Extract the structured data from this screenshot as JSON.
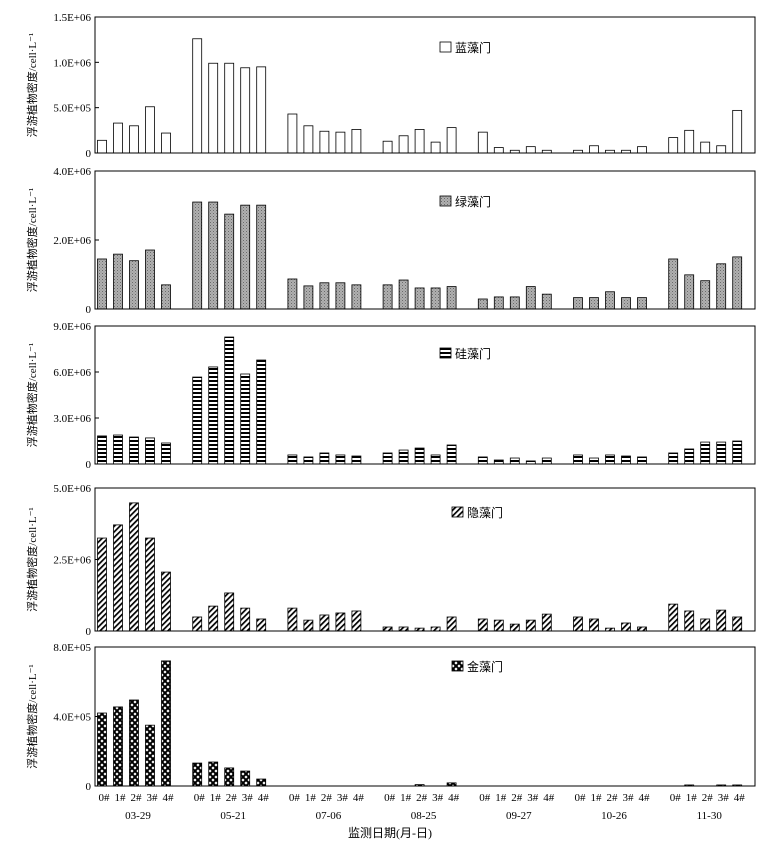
{
  "chart_data": {
    "type": "bar",
    "xlabel": "监测日期(月-日)",
    "categories": [
      "03-29",
      "05-21",
      "07-06",
      "08-25",
      "09-27",
      "10-26",
      "11-30"
    ],
    "stations": [
      "0#",
      "1#",
      "2#",
      "3#",
      "4#"
    ],
    "panels": [
      {
        "name": "蓝藻门",
        "ylabel": "浮游植物密度/cell·L⁻¹",
        "ylim": [
          0,
          1500000
        ],
        "yticks": [
          0,
          500000,
          1000000,
          1500000
        ],
        "ytick_labels": [
          "0",
          "5.0E+05",
          "1.0E+06",
          "1.5E+06"
        ],
        "values": [
          [
            140000,
            330000,
            300000,
            510000,
            220000
          ],
          [
            1260000,
            990000,
            990000,
            940000,
            950000
          ],
          [
            430000,
            300000,
            240000,
            230000,
            260000
          ],
          [
            130000,
            190000,
            260000,
            120000,
            280000
          ],
          [
            230000,
            60000,
            30000,
            70000,
            30000
          ],
          [
            30000,
            80000,
            30000,
            30000,
            70000
          ],
          [
            170000,
            250000,
            120000,
            80000,
            470000
          ]
        ]
      },
      {
        "name": "绿藻门",
        "ylabel": "浮游植物密度/cell·L⁻¹",
        "ylim": [
          0,
          4000000
        ],
        "yticks": [
          0,
          2000000,
          4000000
        ],
        "ytick_labels": [
          "0",
          "2.0E+06",
          "4.0E+06"
        ],
        "values": [
          [
            1450000,
            1590000,
            1400000,
            1710000,
            700000
          ],
          [
            3100000,
            3100000,
            2750000,
            3010000,
            3010000
          ],
          [
            870000,
            670000,
            760000,
            760000,
            700000
          ],
          [
            700000,
            840000,
            610000,
            610000,
            650000
          ],
          [
            290000,
            350000,
            350000,
            650000,
            430000
          ],
          [
            330000,
            330000,
            500000,
            330000,
            330000
          ],
          [
            1450000,
            990000,
            820000,
            1310000,
            1510000
          ]
        ]
      },
      {
        "name": "硅藻门",
        "ylabel": "浮游植物密度/cell·L⁻¹",
        "ylim": [
          0,
          9000000
        ],
        "yticks": [
          0,
          3000000,
          6000000,
          9000000
        ],
        "ytick_labels": [
          "0",
          "3.0E+06",
          "6.0E+06",
          "9.0E+06"
        ],
        "values": [
          [
            1830000,
            1890000,
            1760000,
            1700000,
            1370000
          ],
          [
            5670000,
            6330000,
            8280000,
            5870000,
            6780000
          ],
          [
            590000,
            460000,
            720000,
            590000,
            520000
          ],
          [
            720000,
            910000,
            1040000,
            590000,
            1240000
          ],
          [
            460000,
            260000,
            390000,
            200000,
            390000
          ],
          [
            590000,
            390000,
            590000,
            520000,
            460000
          ],
          [
            720000,
            980000,
            1430000,
            1430000,
            1500000
          ]
        ]
      },
      {
        "name": "隐藻门",
        "ylabel": "浮游植物密度/cell·L⁻¹",
        "ylim": [
          0,
          5000000
        ],
        "yticks": [
          0,
          2500000,
          5000000
        ],
        "ytick_labels": [
          "0",
          "2.5E+06",
          "5.0E+06"
        ],
        "values": [
          [
            3250000,
            3710000,
            4480000,
            3250000,
            2060000
          ],
          [
            490000,
            870000,
            1330000,
            800000,
            420000
          ],
          [
            800000,
            380000,
            560000,
            630000,
            700000
          ],
          [
            140000,
            140000,
            100000,
            140000,
            490000
          ],
          [
            420000,
            380000,
            240000,
            380000,
            590000
          ],
          [
            490000,
            420000,
            100000,
            280000,
            140000
          ],
          [
            940000,
            700000,
            420000,
            730000,
            490000
          ]
        ]
      },
      {
        "name": "金藻门",
        "ylabel": "浮游植物密度/cell·L⁻¹",
        "ylim": [
          0,
          800000
        ],
        "yticks": [
          0,
          400000,
          800000
        ],
        "ytick_labels": [
          "0",
          "4.0E+05",
          "8.0E+05"
        ],
        "values": [
          [
            420000,
            455000,
            495000,
            350000,
            720000
          ],
          [
            132000,
            138000,
            104000,
            86000,
            40000
          ],
          [
            0,
            0,
            0,
            0,
            0
          ],
          [
            0,
            0,
            8000,
            0,
            18000
          ],
          [
            0,
            0,
            0,
            0,
            0
          ],
          [
            0,
            0,
            0,
            0,
            0
          ],
          [
            0,
            6000,
            0,
            6000,
            6000
          ]
        ]
      }
    ]
  }
}
